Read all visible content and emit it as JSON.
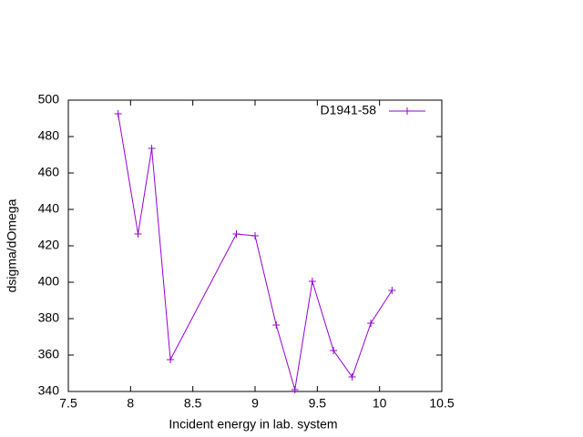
{
  "chart_data": {
    "type": "line",
    "xlabel": "Incident energy in lab. system",
    "ylabel": "dsigma/dOmega",
    "x": [
      7.9,
      8.06,
      8.17,
      8.32,
      8.85,
      9.0,
      9.17,
      9.32,
      9.46,
      9.63,
      9.78,
      9.93,
      10.1
    ],
    "series": [
      {
        "name": "D1941-58",
        "color": "#9400d3",
        "values": [
          492.5,
          426.5,
          473.5,
          357.5,
          426.5,
          425.5,
          376.5,
          341,
          400.5,
          362.5,
          348,
          377.5,
          395.5
        ]
      }
    ],
    "xlim": [
      7.5,
      10.5
    ],
    "xticks": [
      7.5,
      8,
      8.5,
      9,
      9.5,
      10,
      10.5
    ],
    "ylim": [
      340,
      500
    ],
    "yticks": [
      340,
      360,
      380,
      400,
      420,
      440,
      460,
      480,
      500
    ],
    "legend": "top-right"
  }
}
